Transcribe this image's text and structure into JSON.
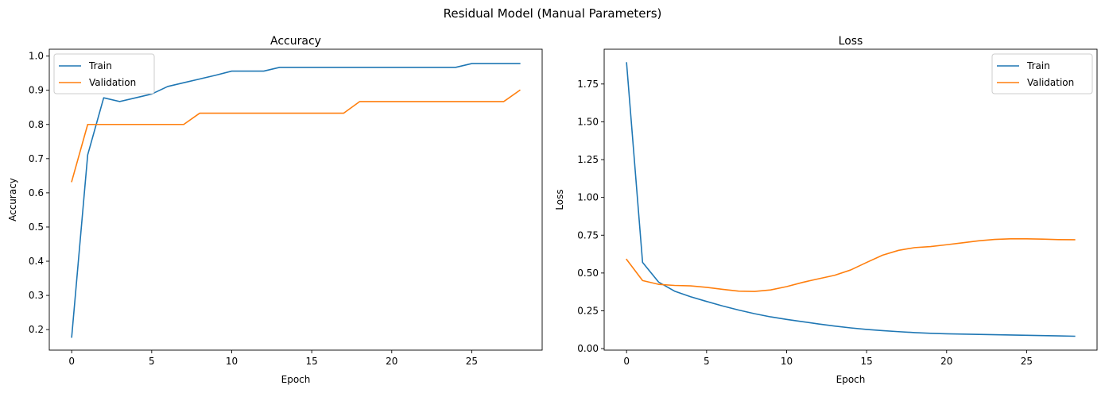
{
  "figure": {
    "suptitle": "Residual Model (Manual Parameters)"
  },
  "colors": {
    "train": "#1f77b4",
    "validation": "#ff7f0e",
    "axis": "#000000",
    "legend_border": "#cccccc"
  },
  "chart_data": [
    {
      "type": "line",
      "title": "Accuracy",
      "xlabel": "Epoch",
      "ylabel": "Accuracy",
      "xlim": [
        -1.4,
        29.4
      ],
      "ylim": [
        0.14,
        1.02
      ],
      "xticks": [
        0,
        5,
        10,
        15,
        20,
        25
      ],
      "xtick_labels": [
        "0",
        "5",
        "10",
        "15",
        "20",
        "25"
      ],
      "yticks": [
        0.2,
        0.3,
        0.4,
        0.5,
        0.6,
        0.7,
        0.8,
        0.9,
        1.0
      ],
      "ytick_labels": [
        "0.2",
        "0.3",
        "0.4",
        "0.5",
        "0.6",
        "0.7",
        "0.8",
        "0.9",
        "1.0"
      ],
      "grid": false,
      "legend": "upper-left",
      "x": [
        0,
        1,
        2,
        3,
        4,
        5,
        6,
        7,
        8,
        9,
        10,
        11,
        12,
        13,
        14,
        15,
        16,
        17,
        18,
        19,
        20,
        21,
        22,
        23,
        24,
        25,
        26,
        27,
        28
      ],
      "series": [
        {
          "name": "Train",
          "color_key": "train",
          "values": [
            0.178,
            0.711,
            0.878,
            0.867,
            0.878,
            0.889,
            0.911,
            0.922,
            0.933,
            0.944,
            0.956,
            0.956,
            0.956,
            0.967,
            0.967,
            0.967,
            0.967,
            0.967,
            0.967,
            0.967,
            0.967,
            0.967,
            0.967,
            0.967,
            0.967,
            0.978,
            0.978,
            0.978,
            0.978
          ]
        },
        {
          "name": "Validation",
          "color_key": "validation",
          "values": [
            0.633,
            0.8,
            0.8,
            0.8,
            0.8,
            0.8,
            0.8,
            0.8,
            0.833,
            0.833,
            0.833,
            0.833,
            0.833,
            0.833,
            0.833,
            0.833,
            0.833,
            0.833,
            0.867,
            0.867,
            0.867,
            0.867,
            0.867,
            0.867,
            0.867,
            0.867,
            0.867,
            0.867,
            0.9
          ]
        }
      ]
    },
    {
      "type": "line",
      "title": "Loss",
      "xlabel": "Epoch",
      "ylabel": "Loss",
      "xlim": [
        -1.4,
        29.4
      ],
      "ylim": [
        -0.01,
        1.98
      ],
      "xticks": [
        0,
        5,
        10,
        15,
        20,
        25
      ],
      "xtick_labels": [
        "0",
        "5",
        "10",
        "15",
        "20",
        "25"
      ],
      "yticks": [
        0.0,
        0.25,
        0.5,
        0.75,
        1.0,
        1.25,
        1.5,
        1.75
      ],
      "ytick_labels": [
        "0.00",
        "0.25",
        "0.50",
        "0.75",
        "1.00",
        "1.25",
        "1.50",
        "1.75"
      ],
      "grid": false,
      "legend": "upper-right",
      "x": [
        0,
        1,
        2,
        3,
        4,
        5,
        6,
        7,
        8,
        9,
        10,
        11,
        12,
        13,
        14,
        15,
        16,
        17,
        18,
        19,
        20,
        21,
        22,
        23,
        24,
        25,
        26,
        27,
        28
      ],
      "series": [
        {
          "name": "Train",
          "color_key": "train",
          "values": [
            1.89,
            0.57,
            0.44,
            0.38,
            0.343,
            0.312,
            0.282,
            0.255,
            0.231,
            0.21,
            0.193,
            0.178,
            0.163,
            0.149,
            0.137,
            0.127,
            0.119,
            0.112,
            0.106,
            0.101,
            0.098,
            0.096,
            0.094,
            0.092,
            0.09,
            0.088,
            0.086,
            0.084,
            0.082
          ]
        },
        {
          "name": "Validation",
          "color_key": "validation",
          "values": [
            0.59,
            0.45,
            0.425,
            0.418,
            0.415,
            0.405,
            0.392,
            0.38,
            0.378,
            0.388,
            0.41,
            0.438,
            0.462,
            0.485,
            0.52,
            0.57,
            0.618,
            0.65,
            0.668,
            0.675,
            0.687,
            0.7,
            0.713,
            0.722,
            0.726,
            0.726,
            0.724,
            0.721,
            0.72
          ]
        }
      ]
    }
  ]
}
